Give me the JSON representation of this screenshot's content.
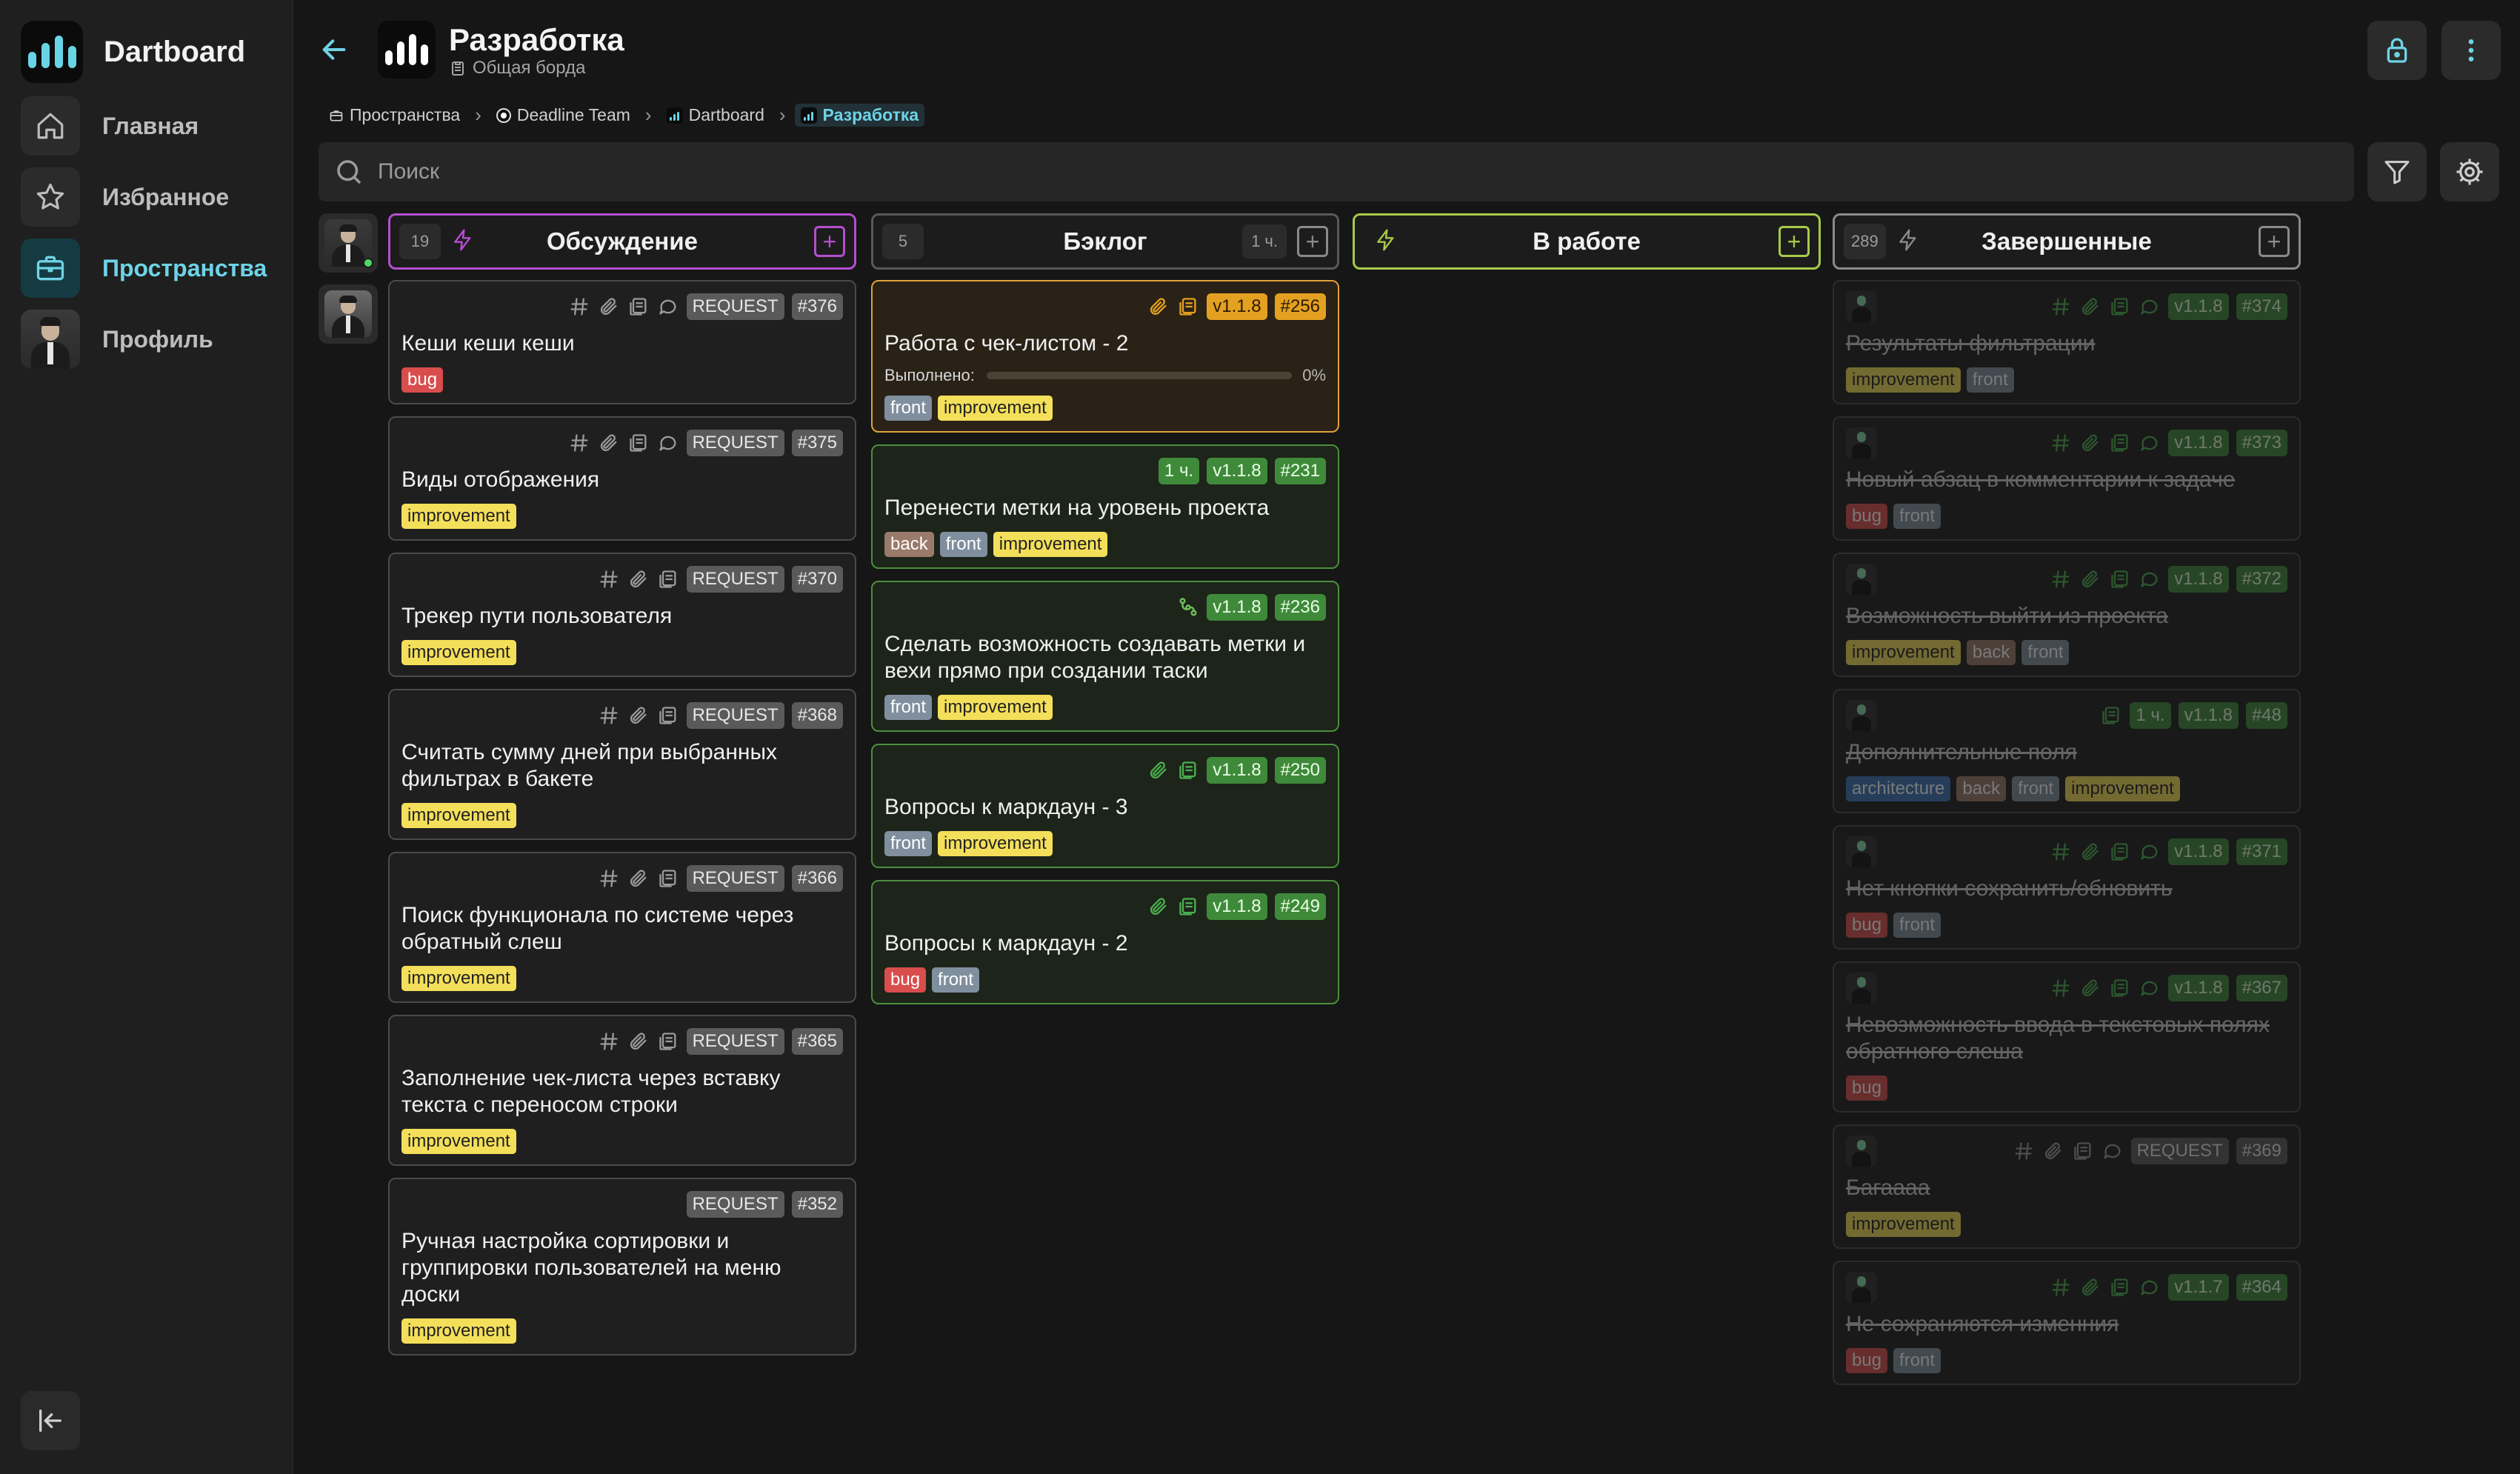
{
  "app": {
    "name": "Dartboard"
  },
  "nav": [
    {
      "id": "home",
      "label": "Главная",
      "icon": "home-icon",
      "active": false
    },
    {
      "id": "favorites",
      "label": "Избранное",
      "icon": "star-icon",
      "active": false
    },
    {
      "id": "spaces",
      "label": "Пространства",
      "icon": "briefcase-icon",
      "active": true
    },
    {
      "id": "profile",
      "label": "Профиль",
      "icon": "avatar",
      "active": false
    }
  ],
  "header": {
    "title": "Разработка",
    "subtitle": "Общая борда"
  },
  "breadcrumbs": [
    {
      "label": "Пространства",
      "icon": "spaces-icon"
    },
    {
      "label": "Deadline Team",
      "icon": "team-icon"
    },
    {
      "label": "Dartboard",
      "icon": "project-icon"
    },
    {
      "label": "Разработка",
      "icon": "board-icon",
      "current": true
    }
  ],
  "search": {
    "placeholder": "Поиск",
    "value": ""
  },
  "columns": [
    {
      "id": "discussion",
      "title": "Обсуждение",
      "count": "19",
      "bolt": true,
      "time": "",
      "color": "#b44fcf",
      "cards": [
        {
          "icons": [
            "hash",
            "clip",
            "doc",
            "chat"
          ],
          "badges": [
            {
              "t": "REQUEST",
              "k": "req"
            },
            {
              "t": "#376",
              "k": "num"
            }
          ],
          "title": "Кеши кеши кеши",
          "tags": [
            "bug"
          ]
        },
        {
          "icons": [
            "hash",
            "clip",
            "doc",
            "chat"
          ],
          "badges": [
            {
              "t": "REQUEST",
              "k": "req"
            },
            {
              "t": "#375",
              "k": "num"
            }
          ],
          "title": "Виды отображения",
          "tags": [
            "improvement"
          ]
        },
        {
          "icons": [
            "hash",
            "clip",
            "doc"
          ],
          "badges": [
            {
              "t": "REQUEST",
              "k": "req"
            },
            {
              "t": "#370",
              "k": "num"
            }
          ],
          "title": "Трекер пути пользователя",
          "tags": [
            "improvement"
          ]
        },
        {
          "icons": [
            "hash",
            "clip",
            "doc"
          ],
          "badges": [
            {
              "t": "REQUEST",
              "k": "req"
            },
            {
              "t": "#368",
              "k": "num"
            }
          ],
          "title": "Считать сумму дней при выбранных фильтрах в бакете",
          "tags": [
            "improvement"
          ]
        },
        {
          "icons": [
            "hash",
            "clip",
            "doc"
          ],
          "badges": [
            {
              "t": "REQUEST",
              "k": "req"
            },
            {
              "t": "#366",
              "k": "num"
            }
          ],
          "title": "Поиск функционала по системе через обратный слеш",
          "tags": [
            "improvement"
          ]
        },
        {
          "icons": [
            "hash",
            "clip",
            "doc"
          ],
          "badges": [
            {
              "t": "REQUEST",
              "k": "req"
            },
            {
              "t": "#365",
              "k": "num"
            }
          ],
          "title": "Заполнение чек-листа через вставку текста с переносом строки",
          "tags": [
            "improvement"
          ]
        },
        {
          "icons": [],
          "badges": [
            {
              "t": "REQUEST",
              "k": "req"
            },
            {
              "t": "#352",
              "k": "num"
            }
          ],
          "title": "Ручная настройка сортировки и группировки пользователей на меню доски",
          "tags": [
            "improvement"
          ]
        }
      ]
    },
    {
      "id": "backlog",
      "title": "Бэклог",
      "count": "5",
      "bolt": false,
      "time": "1 ч.",
      "color": "#595959",
      "cards": [
        {
          "highlight": true,
          "icons": [
            "clipo",
            "doco"
          ],
          "badges": [
            {
              "t": "v1.1.8",
              "k": "vero"
            },
            {
              "t": "#256",
              "k": "numo"
            }
          ],
          "title": "Работа с чек-листом - 2",
          "progress": {
            "label": "Выполнено:",
            "pct": "0%",
            "value": 0
          },
          "tags": [
            "front",
            "improvement"
          ]
        },
        {
          "icons": [],
          "badges": [
            {
              "t": "1 ч.",
              "k": "time"
            },
            {
              "t": "v1.1.8",
              "k": "ver"
            },
            {
              "t": "#231",
              "k": "numg"
            }
          ],
          "title": "Перенести метки на уровень проекта",
          "tags": [
            "back",
            "front",
            "improvement"
          ]
        },
        {
          "icons": [
            "branch"
          ],
          "badges": [
            {
              "t": "v1.1.8",
              "k": "ver"
            },
            {
              "t": "#236",
              "k": "numg"
            }
          ],
          "title": "Сделать возможность создавать метки и вехи прямо при создании таски",
          "tags": [
            "front",
            "improvement"
          ]
        },
        {
          "icons": [
            "clipg",
            "docg"
          ],
          "badges": [
            {
              "t": "v1.1.8",
              "k": "ver"
            },
            {
              "t": "#250",
              "k": "numg"
            }
          ],
          "title": "Вопросы к маркдаун - 3",
          "tags": [
            "front",
            "improvement"
          ]
        },
        {
          "icons": [
            "clipg",
            "docg"
          ],
          "badges": [
            {
              "t": "v1.1.8",
              "k": "ver"
            },
            {
              "t": "#249",
              "k": "numg"
            }
          ],
          "title": "Вопросы к маркдаун - 2",
          "tags": [
            "bug",
            "front"
          ]
        }
      ]
    },
    {
      "id": "inwork",
      "title": "В работе",
      "count": "",
      "bolt": true,
      "time": "",
      "color": "#a7c94a",
      "cards": []
    },
    {
      "id": "done",
      "title": "Завершенные",
      "count": "289",
      "bolt": true,
      "time": "",
      "color": "#8a8a8a",
      "cards": [
        {
          "avatar": true,
          "icons": [
            "hashg",
            "clipg",
            "docg",
            "chatg"
          ],
          "badges": [
            {
              "t": "v1.1.8",
              "k": "ver"
            },
            {
              "t": "#374",
              "k": "numg"
            }
          ],
          "title": "Результаты фильтрации",
          "tags": [
            "improvement",
            "front"
          ]
        },
        {
          "avatar": true,
          "icons": [
            "hashg",
            "clipg",
            "docg",
            "chatg"
          ],
          "badges": [
            {
              "t": "v1.1.8",
              "k": "ver"
            },
            {
              "t": "#373",
              "k": "numg"
            }
          ],
          "title": "Новый абзац в комментарии к задаче",
          "tags": [
            "bug",
            "front"
          ]
        },
        {
          "avatar": true,
          "icons": [
            "hashg",
            "clipg",
            "docg",
            "chatg"
          ],
          "badges": [
            {
              "t": "v1.1.8",
              "k": "ver"
            },
            {
              "t": "#372",
              "k": "numg"
            }
          ],
          "title": "Возможность выйти из проекта",
          "tags": [
            "improvement",
            "back",
            "front"
          ]
        },
        {
          "avatar": true,
          "icons": [
            "docg"
          ],
          "badges": [
            {
              "t": "1 ч.",
              "k": "time"
            },
            {
              "t": "v1.1.8",
              "k": "ver"
            },
            {
              "t": "#48",
              "k": "numg"
            }
          ],
          "title": "Дополнительные поля",
          "tags": [
            "architecture",
            "back",
            "front",
            "improvement"
          ]
        },
        {
          "avatar": true,
          "icons": [
            "hashg",
            "clipg",
            "docg",
            "chatg"
          ],
          "badges": [
            {
              "t": "v1.1.8",
              "k": "ver"
            },
            {
              "t": "#371",
              "k": "numg"
            }
          ],
          "title": "Нет кнопки сохранить/обновить",
          "tags": [
            "bug",
            "front"
          ]
        },
        {
          "avatar": true,
          "icons": [
            "hashg",
            "clipg",
            "docg",
            "chatg"
          ],
          "badges": [
            {
              "t": "v1.1.8",
              "k": "ver"
            },
            {
              "t": "#367",
              "k": "numg"
            }
          ],
          "title": "Невозможность ввода в текстовых полях обратного слеша",
          "tags": [
            "bug"
          ]
        },
        {
          "avatar": true,
          "icons": [
            "hash",
            "clip",
            "doc",
            "chat"
          ],
          "badges": [
            {
              "t": "REQUEST",
              "k": "req"
            },
            {
              "t": "#369",
              "k": "num"
            }
          ],
          "title": "Багаааа",
          "tags": [
            "improvement"
          ]
        },
        {
          "avatar": true,
          "icons": [
            "hashg",
            "clipg",
            "docg",
            "chatg"
          ],
          "badges": [
            {
              "t": "v1.1.7",
              "k": "ver"
            },
            {
              "t": "#364",
              "k": "numg"
            }
          ],
          "title": "Не сохраняются изменния",
          "tags": [
            "bug",
            "front"
          ]
        }
      ]
    }
  ]
}
